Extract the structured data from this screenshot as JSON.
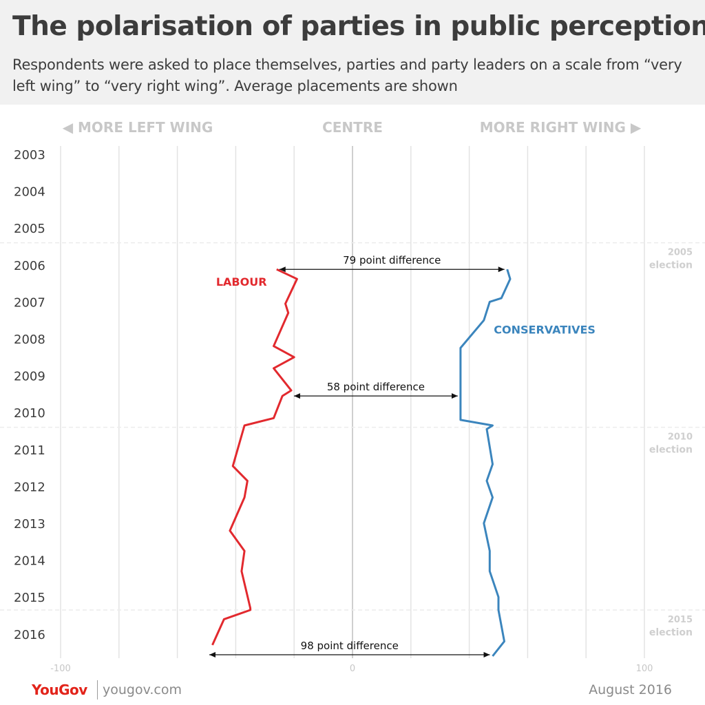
{
  "header": {
    "title": "The polarisation of parties in public perception",
    "subtitle": "Respondents were asked to place themselves, parties and party leaders on a scale from “very left wing” to “very right wing”. Average placements are shown"
  },
  "footer": {
    "logo": "YouGov",
    "url": "yougov.com",
    "date": "August 2016"
  },
  "chart_data": {
    "type": "line",
    "orientation": "vertical-time",
    "top_labels": {
      "left": "◀ MORE LEFT WING",
      "centre": "CENTRE",
      "right": "MORE RIGHT WING ▶"
    },
    "xlim": [
      -100,
      100
    ],
    "x_ticks": [
      -100,
      0,
      100
    ],
    "x_tick_labels": [
      "-100",
      "0",
      "100"
    ],
    "years": [
      "2003",
      "2004",
      "2005",
      "2006",
      "2007",
      "2008",
      "2009",
      "2010",
      "2011",
      "2012",
      "2013",
      "2014",
      "2015",
      "2016"
    ],
    "time_range": [
      2003,
      2016.6
    ],
    "grid": true,
    "elections": [
      {
        "t": 2005.4,
        "line1": "2005",
        "line2": "election"
      },
      {
        "t": 2010.4,
        "line1": "2010",
        "line2": "election"
      },
      {
        "t": 2015.35,
        "line1": "2015",
        "line2": "election"
      }
    ],
    "series": [
      {
        "name": "LABOUR",
        "color": "#e2292e",
        "points": [
          [
            2006.12,
            -26
          ],
          [
            2006.38,
            -19
          ],
          [
            2007.05,
            -23
          ],
          [
            2007.3,
            -22
          ],
          [
            2008.2,
            -27
          ],
          [
            2008.5,
            -20
          ],
          [
            2008.8,
            -27
          ],
          [
            2009.4,
            -21
          ],
          [
            2009.55,
            -24
          ],
          [
            2010.15,
            -27
          ],
          [
            2010.35,
            -37
          ],
          [
            2011.45,
            -41
          ],
          [
            2011.85,
            -36
          ],
          [
            2012.3,
            -37
          ],
          [
            2013.2,
            -42
          ],
          [
            2013.75,
            -37
          ],
          [
            2014.3,
            -38
          ],
          [
            2015.3,
            -35
          ],
          [
            2015.35,
            -35
          ],
          [
            2015.6,
            -44
          ],
          [
            2016.3,
            -48
          ]
        ]
      },
      {
        "name": "CONSERVATIVES",
        "color": "#3b85bd",
        "points": [
          [
            2006.12,
            53
          ],
          [
            2006.38,
            54
          ],
          [
            2006.9,
            51
          ],
          [
            2007.0,
            47
          ],
          [
            2007.5,
            45
          ],
          [
            2008.25,
            37
          ],
          [
            2009.4,
            37
          ],
          [
            2009.55,
            37
          ],
          [
            2010.2,
            37
          ],
          [
            2010.35,
            48
          ],
          [
            2010.45,
            46
          ],
          [
            2011.4,
            48
          ],
          [
            2011.85,
            46
          ],
          [
            2012.3,
            48
          ],
          [
            2013.0,
            45
          ],
          [
            2013.75,
            47
          ],
          [
            2014.3,
            47
          ],
          [
            2015.0,
            50
          ],
          [
            2015.35,
            50
          ],
          [
            2016.2,
            52
          ],
          [
            2016.6,
            48
          ]
        ]
      }
    ],
    "annotations": [
      {
        "text": "79 point difference",
        "t": 2006.12,
        "x1": -26,
        "x2": 53
      },
      {
        "text": "58 point difference",
        "t": 2009.55,
        "x1": -21,
        "x2": 37
      },
      {
        "text": "98 point difference",
        "t": 2016.6,
        "x1": -50,
        "x2": 48
      }
    ]
  }
}
